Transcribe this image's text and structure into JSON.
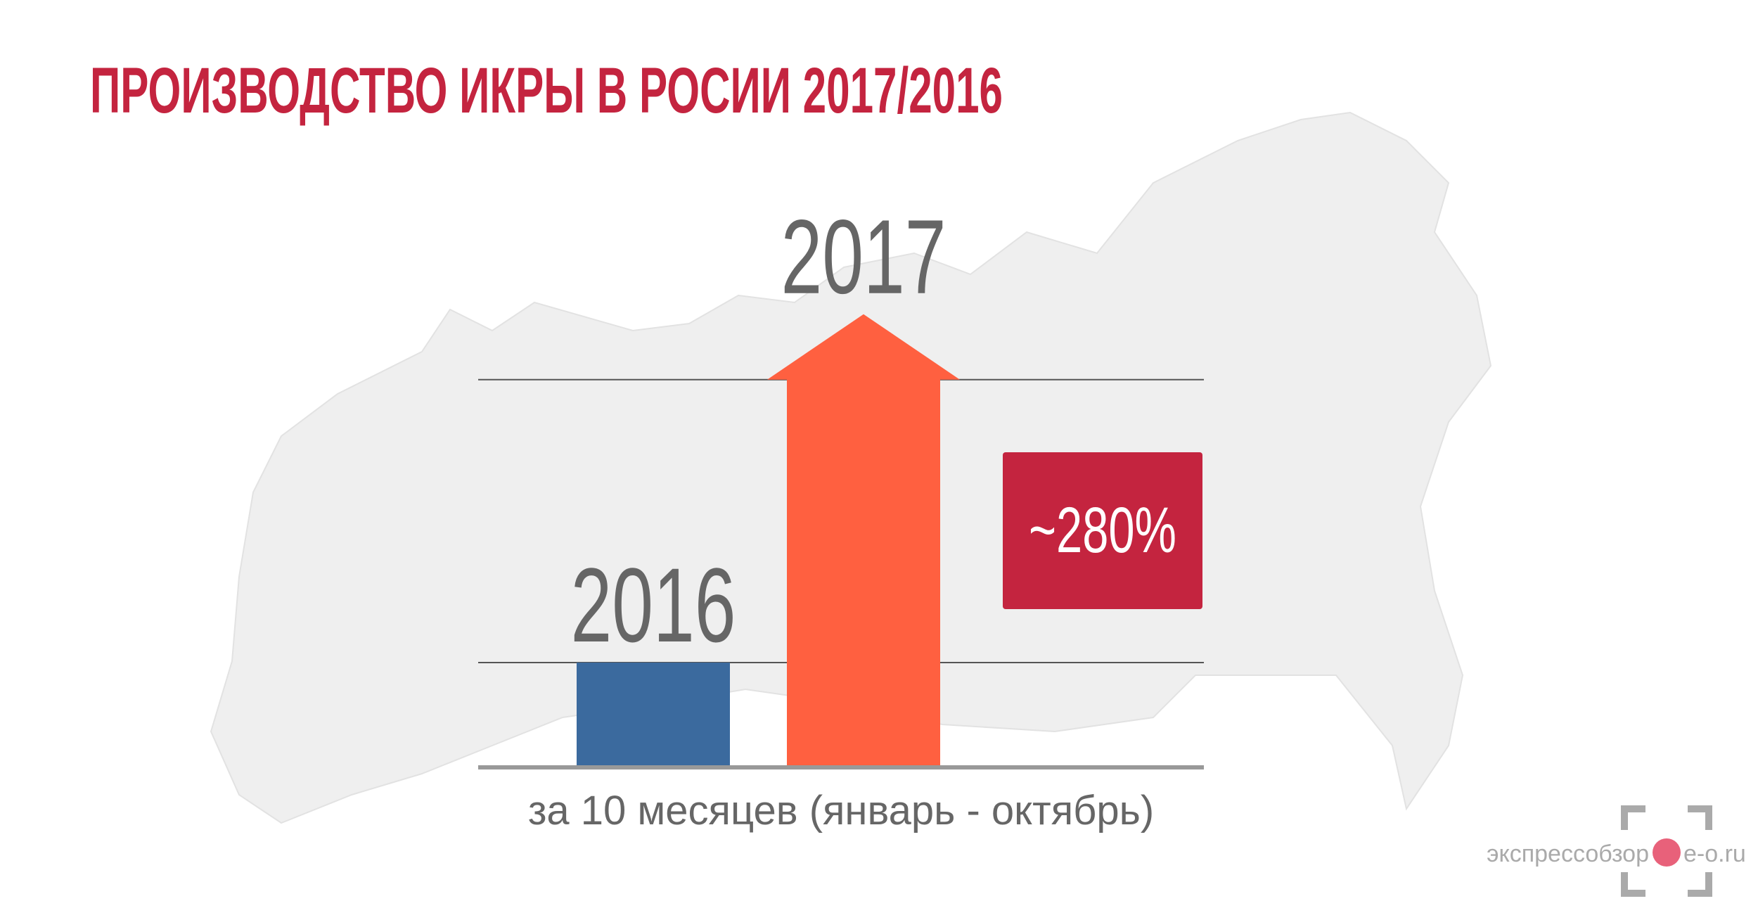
{
  "chart_data": {
    "type": "arrow-bar",
    "title": "ПРОИЗВОДСТВО ИКРЫ В РОСИИ 2017/2016",
    "subtitle": "за 10 месяцев (январь - октябрь)",
    "categories": [
      "2016",
      "2017"
    ],
    "values": [
      1,
      3.7
    ],
    "colors": [
      "#3b6a9e",
      "#ff6040"
    ],
    "annotation": "~280%",
    "watermark": [
      "экспрессобзор",
      "e-o.ru"
    ]
  }
}
